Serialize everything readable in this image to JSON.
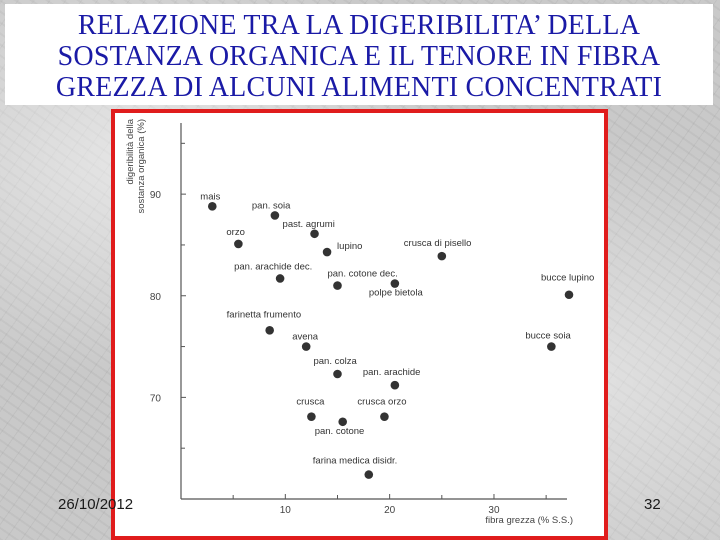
{
  "slide": {
    "title_lines": [
      "RELAZIONE TRA LA DIGERIBILITA’ DELLA",
      "SOSTANZA ORGANICA E IL TENORE IN FIBRA",
      "GREZZA DI ALCUNI ALIMENTI CONCENTRATI"
    ],
    "date": "26/10/2012",
    "page_number": "32"
  },
  "colors": {
    "title": "#1a1aa6",
    "frame_border": "#e01c1c",
    "points": "#333333"
  },
  "chart_data": {
    "type": "scatter",
    "title": "",
    "xlabel": "fibra grezza (% S.S.)",
    "ylabel_lines": [
      "digeribilità della",
      "sostanza organica (%)"
    ],
    "xlim": [
      0,
      37
    ],
    "ylim": [
      60,
      97
    ],
    "xticks": [
      10,
      20,
      30
    ],
    "yticks": [
      70,
      80,
      90
    ],
    "grid": false,
    "points": [
      {
        "label": "mais",
        "x": 3.0,
        "y": 88.8
      },
      {
        "label": "pan. soia",
        "x": 9.0,
        "y": 87.9
      },
      {
        "label": "past. agrumi",
        "x": 12.8,
        "y": 86.1
      },
      {
        "label": "orzo",
        "x": 5.5,
        "y": 85.1
      },
      {
        "label": "lupino",
        "x": 14.0,
        "y": 84.3
      },
      {
        "label": "crusca di pisello",
        "x": 25.0,
        "y": 83.9
      },
      {
        "label": "pan. arachide dec.",
        "x": 9.5,
        "y": 81.7
      },
      {
        "label": "pan. cotone dec.",
        "x": 15.0,
        "y": 81.0
      },
      {
        "label": "polpe bietola",
        "x": 20.5,
        "y": 81.2
      },
      {
        "label": "bucce lupino",
        "x": 37.5,
        "y": 80.1
      },
      {
        "label": "farinetta frumento",
        "x": 8.5,
        "y": 76.6
      },
      {
        "label": "avena",
        "x": 12.0,
        "y": 75.0
      },
      {
        "label": "bucce soia",
        "x": 35.5,
        "y": 75.0
      },
      {
        "label": "pan. colza",
        "x": 15.0,
        "y": 72.3
      },
      {
        "label": "pan. arachide",
        "x": 20.5,
        "y": 71.2
      },
      {
        "label": "crusca",
        "x": 12.5,
        "y": 68.1
      },
      {
        "label": "crusca orzo",
        "x": 19.5,
        "y": 68.1
      },
      {
        "label": "pan. cotone",
        "x": 15.5,
        "y": 67.6
      },
      {
        "label": "farina medica disidr.",
        "x": 18.0,
        "y": 62.4
      }
    ]
  }
}
